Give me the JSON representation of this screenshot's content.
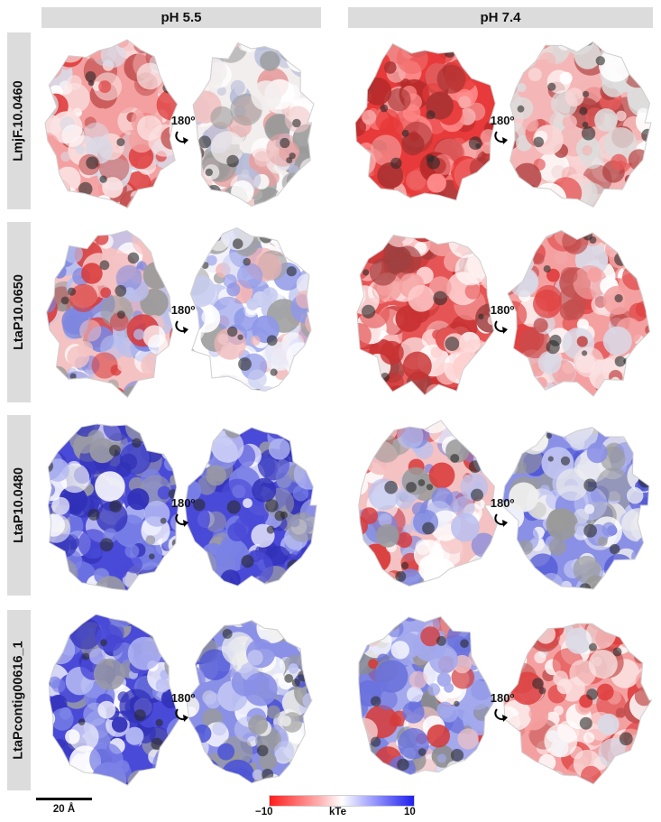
{
  "columns": [
    "pH 5.5",
    "pH 7.4"
  ],
  "rows": [
    "LmjF.10.0460",
    "LtaP10.0650",
    "LtaP10.0480",
    "LtaPcontig00616_1"
  ],
  "rotation_label": "180º",
  "scale_bar_label": "20 Å",
  "colorbar": {
    "min_label": "−10",
    "unit_label": "kTe",
    "max_label": "10",
    "min_color": "#ff1e1e",
    "mid_color": "#ffffff",
    "max_color": "#1e1eee"
  },
  "surface_charge": [
    [
      "red-white",
      "white-mixed",
      "strong-red",
      "red-pink"
    ],
    [
      "red-blue",
      "white-blue",
      "red",
      "red-white"
    ],
    [
      "blue",
      "blue",
      "red-blue",
      "blue-white"
    ],
    [
      "blue",
      "blue-white",
      "blue-red",
      "red-white"
    ]
  ]
}
